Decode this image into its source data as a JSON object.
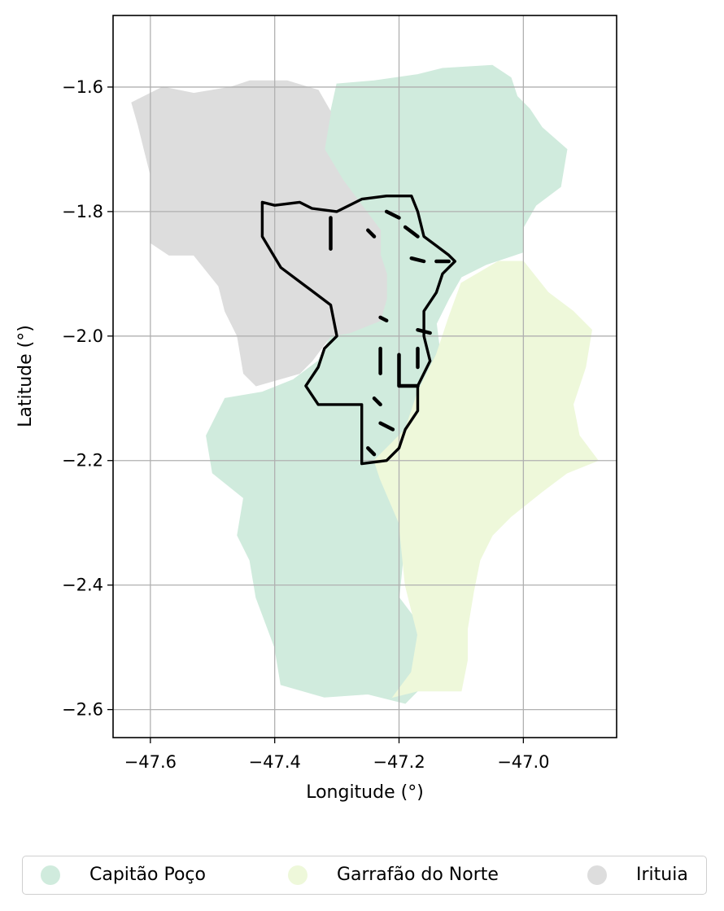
{
  "chart_data": {
    "type": "map",
    "xlabel": "Longitude (°)",
    "ylabel": "Latitude (°)",
    "xlim": [
      -47.66,
      -46.85
    ],
    "ylim": [
      -2.645,
      -1.485
    ],
    "x_ticks": [
      -47.6,
      -47.4,
      -47.2,
      -47.0
    ],
    "x_tick_labels": [
      "−47.6",
      "−47.4",
      "−47.2",
      "−47.0"
    ],
    "y_ticks": [
      -1.6,
      -1.8,
      -2.0,
      -2.2,
      -2.4,
      -2.6
    ],
    "y_tick_labels": [
      "−1.6",
      "−1.8",
      "−2.0",
      "−2.2",
      "−2.4",
      "−2.6"
    ],
    "grid": true,
    "legend_position": "bottom",
    "regions": [
      {
        "name": "Capitão Poço",
        "color": "#d0ebdd",
        "polygons": [
          [
            [
              -47.3,
              -1.595
            ],
            [
              -47.24,
              -1.59
            ],
            [
              -47.17,
              -1.58
            ],
            [
              -47.13,
              -1.57
            ],
            [
              -47.05,
              -1.565
            ],
            [
              -47.02,
              -1.585
            ],
            [
              -47.01,
              -1.615
            ],
            [
              -46.99,
              -1.635
            ],
            [
              -46.97,
              -1.665
            ],
            [
              -46.93,
              -1.7
            ],
            [
              -46.94,
              -1.76
            ],
            [
              -46.98,
              -1.79
            ],
            [
              -47.0,
              -1.825
            ],
            [
              -47.0,
              -1.865
            ],
            [
              -47.06,
              -1.885
            ],
            [
              -47.1,
              -1.905
            ],
            [
              -47.12,
              -1.94
            ],
            [
              -47.14,
              -1.98
            ],
            [
              -47.13,
              -2.06
            ],
            [
              -47.16,
              -2.12
            ],
            [
              -47.17,
              -2.17
            ],
            [
              -47.2,
              -2.24
            ],
            [
              -47.19,
              -2.32
            ],
            [
              -47.2,
              -2.42
            ],
            [
              -47.17,
              -2.46
            ],
            [
              -47.13,
              -2.5
            ],
            [
              -47.16,
              -2.56
            ],
            [
              -47.19,
              -2.59
            ],
            [
              -47.25,
              -2.575
            ],
            [
              -47.32,
              -2.58
            ],
            [
              -47.39,
              -2.56
            ],
            [
              -47.4,
              -2.5
            ],
            [
              -47.43,
              -2.42
            ],
            [
              -47.44,
              -2.36
            ],
            [
              -47.46,
              -2.32
            ],
            [
              -47.45,
              -2.26
            ],
            [
              -47.5,
              -2.22
            ],
            [
              -47.51,
              -2.16
            ],
            [
              -47.49,
              -2.12
            ],
            [
              -47.48,
              -2.1
            ],
            [
              -47.42,
              -2.09
            ],
            [
              -47.37,
              -2.07
            ],
            [
              -47.33,
              -2.04
            ],
            [
              -47.31,
              -2.0
            ],
            [
              -47.23,
              -1.975
            ],
            [
              -47.22,
              -1.94
            ],
            [
              -47.22,
              -1.9
            ],
            [
              -47.23,
              -1.87
            ],
            [
              -47.23,
              -1.83
            ],
            [
              -47.26,
              -1.79
            ],
            [
              -47.29,
              -1.75
            ],
            [
              -47.32,
              -1.7
            ],
            [
              -47.31,
              -1.64
            ]
          ]
        ]
      },
      {
        "name": "Garrafão do Norte",
        "color": "#eef8da",
        "polygons": [
          [
            [
              -47.1,
              -1.915
            ],
            [
              -47.04,
              -1.88
            ],
            [
              -47.0,
              -1.88
            ],
            [
              -46.96,
              -1.93
            ],
            [
              -46.92,
              -1.96
            ],
            [
              -46.89,
              -1.99
            ],
            [
              -46.9,
              -2.05
            ],
            [
              -46.92,
              -2.11
            ],
            [
              -46.91,
              -2.16
            ],
            [
              -46.88,
              -2.2
            ],
            [
              -46.93,
              -2.22
            ],
            [
              -46.97,
              -2.25
            ],
            [
              -47.02,
              -2.29
            ],
            [
              -47.05,
              -2.32
            ],
            [
              -47.07,
              -2.36
            ],
            [
              -47.08,
              -2.41
            ],
            [
              -47.09,
              -2.47
            ],
            [
              -47.09,
              -2.52
            ],
            [
              -47.1,
              -2.57
            ],
            [
              -47.17,
              -2.57
            ],
            [
              -47.21,
              -2.58
            ],
            [
              -47.18,
              -2.54
            ],
            [
              -47.17,
              -2.48
            ],
            [
              -47.19,
              -2.4
            ],
            [
              -47.2,
              -2.3
            ],
            [
              -47.23,
              -2.23
            ],
            [
              -47.24,
              -2.2
            ],
            [
              -47.19,
              -2.15
            ],
            [
              -47.17,
              -2.09
            ],
            [
              -47.14,
              -2.03
            ],
            [
              -47.12,
              -1.97
            ]
          ]
        ]
      },
      {
        "name": "Irituia",
        "color": "#dddddd",
        "polygons": [
          [
            [
              -47.63,
              -1.625
            ],
            [
              -47.58,
              -1.6
            ],
            [
              -47.53,
              -1.61
            ],
            [
              -47.47,
              -1.6
            ],
            [
              -47.44,
              -1.59
            ],
            [
              -47.38,
              -1.59
            ],
            [
              -47.33,
              -1.605
            ],
            [
              -47.31,
              -1.64
            ],
            [
              -47.32,
              -1.7
            ],
            [
              -47.29,
              -1.75
            ],
            [
              -47.26,
              -1.79
            ],
            [
              -47.23,
              -1.83
            ],
            [
              -47.23,
              -1.87
            ],
            [
              -47.22,
              -1.9
            ],
            [
              -47.22,
              -1.94
            ],
            [
              -47.23,
              -1.975
            ],
            [
              -47.28,
              -1.995
            ],
            [
              -47.31,
              -2.0
            ],
            [
              -47.34,
              -2.04
            ],
            [
              -47.36,
              -2.06
            ],
            [
              -47.43,
              -2.08
            ],
            [
              -47.45,
              -2.06
            ],
            [
              -47.46,
              -2.0
            ],
            [
              -47.48,
              -1.96
            ],
            [
              -47.49,
              -1.92
            ],
            [
              -47.53,
              -1.87
            ],
            [
              -47.57,
              -1.87
            ],
            [
              -47.6,
              -1.85
            ],
            [
              -47.6,
              -1.8
            ],
            [
              -47.6,
              -1.74
            ],
            [
              -47.61,
              -1.7
            ],
            [
              -47.62,
              -1.66
            ]
          ]
        ]
      }
    ],
    "boundaries": [
      {
        "color": "#000000",
        "lines": [
          [
            [
              -47.42,
              -1.785
            ],
            [
              -47.4,
              -1.79
            ],
            [
              -47.36,
              -1.785
            ],
            [
              -47.34,
              -1.795
            ],
            [
              -47.3,
              -1.8
            ],
            [
              -47.26,
              -1.78
            ],
            [
              -47.22,
              -1.775
            ],
            [
              -47.18,
              -1.775
            ],
            [
              -47.17,
              -1.8
            ],
            [
              -47.16,
              -1.84
            ],
            [
              -47.14,
              -1.855
            ],
            [
              -47.12,
              -1.87
            ],
            [
              -47.11,
              -1.88
            ],
            [
              -47.13,
              -1.9
            ],
            [
              -47.14,
              -1.93
            ],
            [
              -47.16,
              -1.96
            ],
            [
              -47.16,
              -2.0
            ],
            [
              -47.15,
              -2.04
            ],
            [
              -47.17,
              -2.08
            ],
            [
              -47.17,
              -2.12
            ],
            [
              -47.19,
              -2.15
            ],
            [
              -47.2,
              -2.18
            ],
            [
              -47.22,
              -2.2
            ],
            [
              -47.26,
              -2.205
            ],
            [
              -47.26,
              -2.14
            ],
            [
              -47.26,
              -2.11
            ],
            [
              -47.3,
              -2.11
            ],
            [
              -47.33,
              -2.11
            ],
            [
              -47.35,
              -2.08
            ],
            [
              -47.33,
              -2.05
            ],
            [
              -47.32,
              -2.02
            ],
            [
              -47.3,
              -2.0
            ],
            [
              -47.31,
              -1.95
            ],
            [
              -47.35,
              -1.92
            ],
            [
              -47.39,
              -1.89
            ],
            [
              -47.42,
              -1.84
            ],
            [
              -47.42,
              -1.785
            ]
          ],
          [
            [
              -47.31,
              -1.81
            ],
            [
              -47.31,
              -1.86
            ]
          ],
          [
            [
              -47.22,
              -1.8
            ],
            [
              -47.2,
              -1.81
            ]
          ],
          [
            [
              -47.25,
              -1.83
            ],
            [
              -47.24,
              -1.84
            ]
          ],
          [
            [
              -47.19,
              -1.825
            ],
            [
              -47.17,
              -1.84
            ]
          ],
          [
            [
              -47.18,
              -1.875
            ],
            [
              -47.16,
              -1.88
            ]
          ],
          [
            [
              -47.14,
              -1.88
            ],
            [
              -47.12,
              -1.88
            ]
          ],
          [
            [
              -47.23,
              -1.97
            ],
            [
              -47.22,
              -1.975
            ]
          ],
          [
            [
              -47.17,
              -1.99
            ],
            [
              -47.15,
              -1.995
            ]
          ],
          [
            [
              -47.23,
              -2.02
            ],
            [
              -47.23,
              -2.06
            ]
          ],
          [
            [
              -47.2,
              -2.03
            ],
            [
              -47.2,
              -2.08
            ],
            [
              -47.17,
              -2.08
            ]
          ],
          [
            [
              -47.17,
              -2.02
            ],
            [
              -47.17,
              -2.05
            ]
          ],
          [
            [
              -47.24,
              -2.1
            ],
            [
              -47.23,
              -2.11
            ]
          ],
          [
            [
              -47.23,
              -2.14
            ],
            [
              -47.21,
              -2.15
            ]
          ],
          [
            [
              -47.25,
              -2.18
            ],
            [
              -47.24,
              -2.19
            ]
          ]
        ]
      }
    ],
    "legend": [
      {
        "label": "Capitão Poço",
        "color": "#d0ebdd"
      },
      {
        "label": "Garrafão do Norte",
        "color": "#eef8da"
      },
      {
        "label": "Irituia",
        "color": "#dddddd"
      }
    ]
  }
}
